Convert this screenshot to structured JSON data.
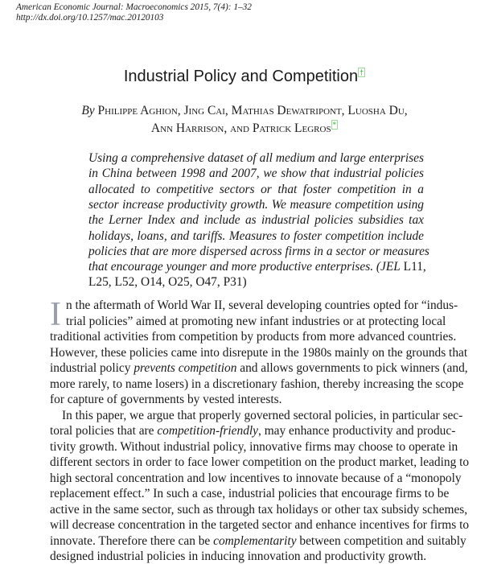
{
  "header": {
    "journal": "American Economic Journal: Macroeconomics 2015, 7(4): 1–32",
    "doi": "http://dx.doi.org/10.1257/mac.20120103"
  },
  "title": "Industrial Policy and Competition",
  "title_mark": "†",
  "authors": {
    "by": "By",
    "line1": "Philippe Aghion, Jing Cai, Mathias Dewatripont, Luosha Du,",
    "line2": "Ann Harrison, and Patrick Legros",
    "mark": "*"
  },
  "abstract": [
    [
      {
        "t": "Using a comprehensive dataset of all medium and large enterprises"
      }
    ],
    [
      {
        "t": "in China between 1998 and 2007, we show that industrial policies"
      }
    ],
    [
      {
        "t": "allocated to competitive sectors or that foster competition in a"
      }
    ],
    [
      {
        "t": "sector increase productivity growth. We measure competition using"
      }
    ],
    [
      {
        "t": "the Lerner Index and include as industrial policies subsidies tax"
      }
    ],
    [
      {
        "t": "holidays, loans, and tariffs. Measures to foster competition include"
      }
    ],
    [
      {
        "t": "policies that are more dispersed across firms in a sector or measures"
      }
    ],
    [
      {
        "t": "that encourage younger and more productive enterprises. ("
      },
      {
        "t": "JEL",
        "i": 1
      },
      {
        "t": " L11,",
        "r": 1
      }
    ],
    [
      {
        "t": "L25, L52, O14, O25, O47, P31)",
        "r": 1
      }
    ]
  ],
  "body": {
    "dropcap": "I",
    "lines": [
      [
        {
          "t": "n the aftermath of World War II, several developing countries opted for “indus-"
        }
      ],
      [
        {
          "t": "trial policies” aimed at promoting new infant industries or at protecting local"
        }
      ],
      [
        {
          "t": "traditional activities from competition by products from more advanced countries."
        }
      ],
      [
        {
          "t": "However, these policies came into disrepute in the 1980s mainly on the grounds that"
        }
      ],
      [
        {
          "t": "industrial policy "
        },
        {
          "t": "prevents competition",
          "i": 1
        },
        {
          "t": " and allows governments to pick winners (and,"
        }
      ],
      [
        {
          "t": "more rarely, to name losers) in a discretionary fashion, thereby increasing the scope"
        }
      ],
      [
        {
          "t": "for capture of governments by vested interests."
        }
      ],
      [
        {
          "t": "In this paper, we argue that properly governed sectoral policies, in particular sec-"
        }
      ],
      [
        {
          "t": "toral policies that are "
        },
        {
          "t": "competition-friendly",
          "i": 1
        },
        {
          "t": ", may enhance productivity and produc-"
        }
      ],
      [
        {
          "t": "tivity growth. Without industrial policy, innovative firms may choose to operate in"
        }
      ],
      [
        {
          "t": "different sectors in order to face lower competition on the product market, leading to"
        }
      ],
      [
        {
          "t": "high sectoral concentration and low incentives to innovate because of a “monopoly"
        }
      ],
      [
        {
          "t": "replacement effect.” In such a case, industrial policies that encourage firms to be"
        }
      ],
      [
        {
          "t": "active in the same sector, such as through tax holidays or other tax subsidy schemes,"
        }
      ],
      [
        {
          "t": "will decrease concentration in the targeted sector and enhance incentives for firms to"
        }
      ],
      [
        {
          "t": "innovate. Therefore there can be "
        },
        {
          "t": "complementarity",
          "i": 1
        },
        {
          "t": " between competition and suitably"
        }
      ],
      [
        {
          "t": "designed industrial policies in inducing innovation and productivity growth."
        }
      ]
    ]
  }
}
